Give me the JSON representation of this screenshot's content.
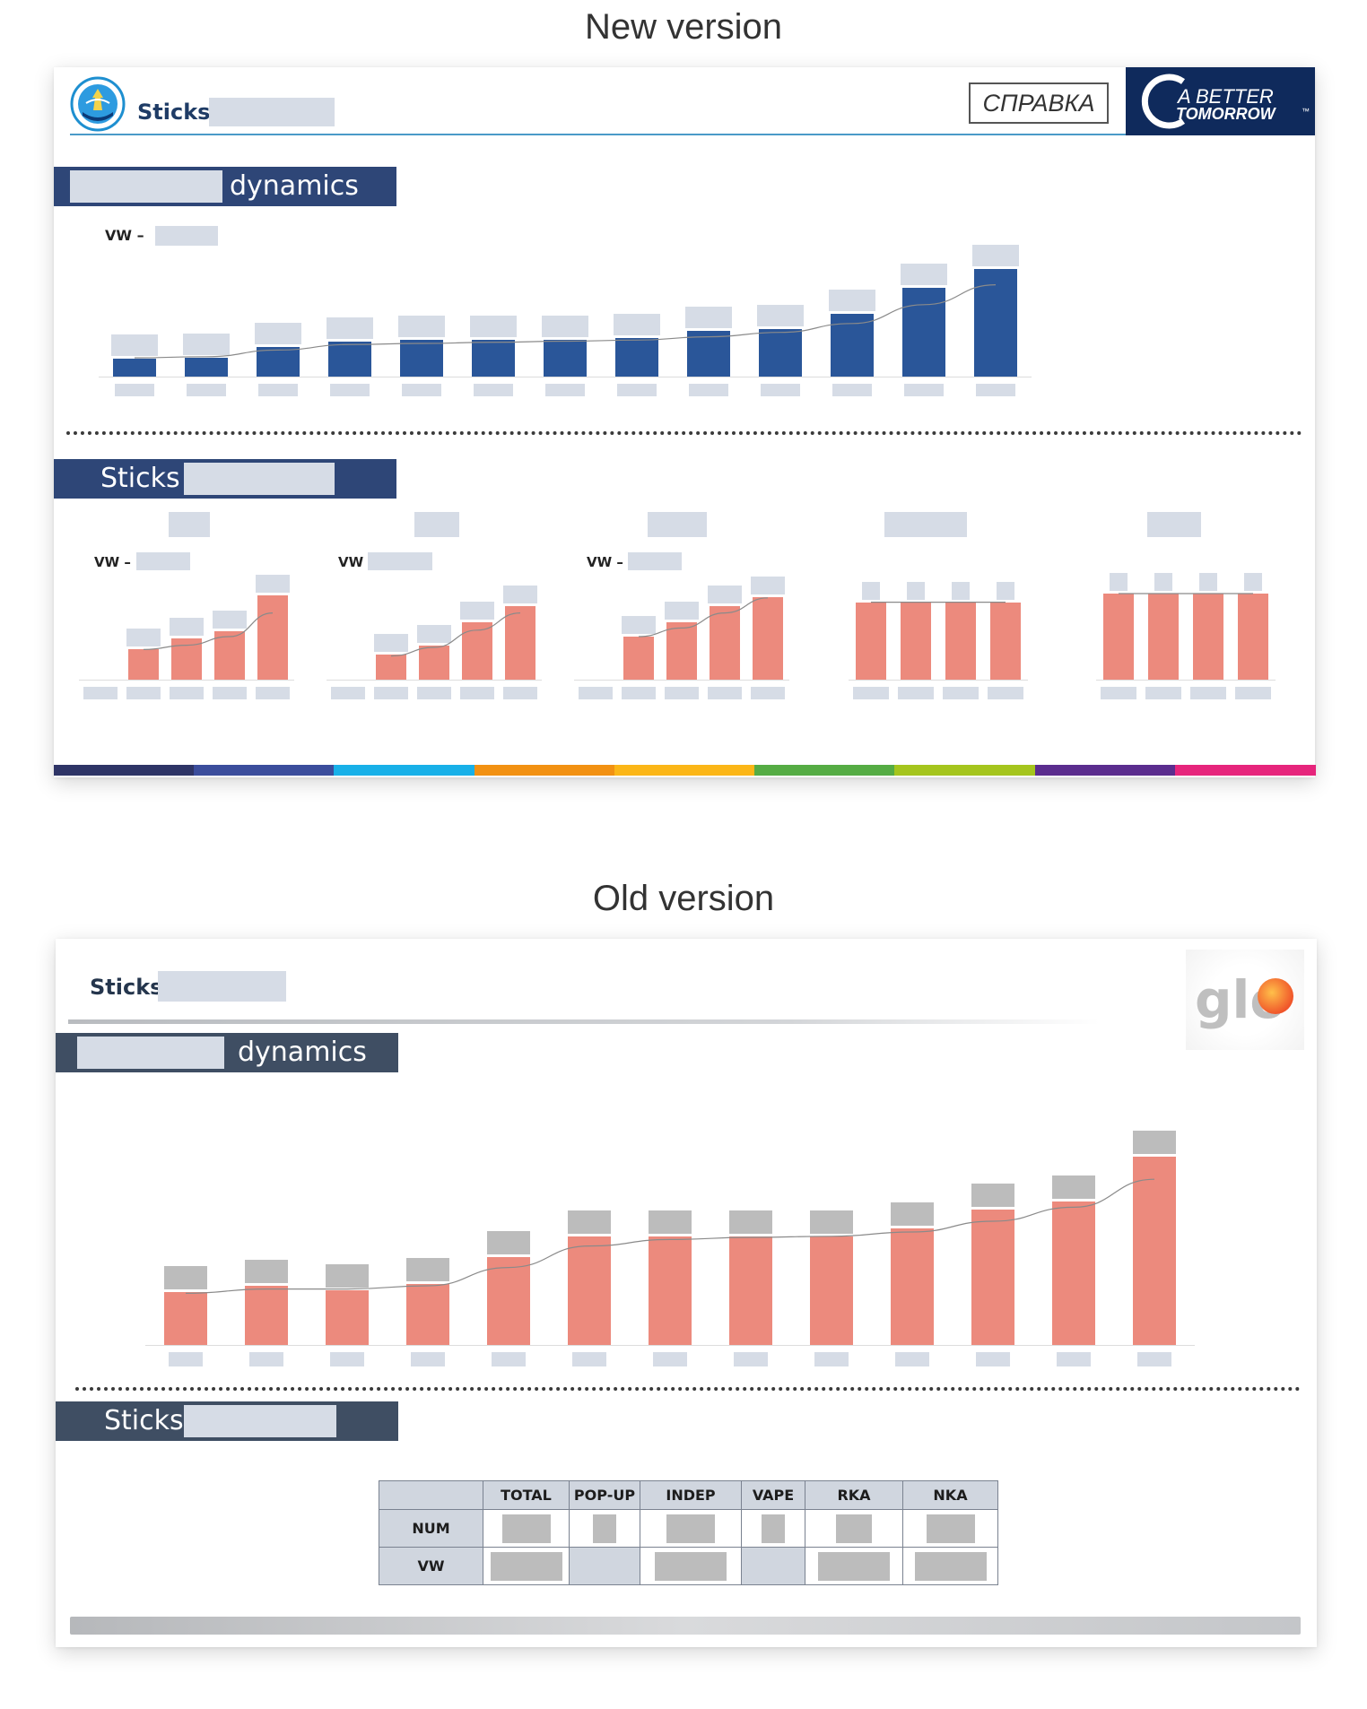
{
  "titles": {
    "new_version": "New version",
    "old_version": "Old version"
  },
  "new_slide": {
    "brand_label": "Sticks",
    "logo_icon": "company-emblem-icon",
    "spravka_button": "СПРАВКА",
    "better_tomorrow_logo": {
      "line1": "A BETTER",
      "line2": "TOMORROW",
      "tm": "™",
      "bg_color": "#0f2a5c"
    },
    "dynamics_header": {
      "suffix": "dynamics",
      "bg_color": "#2e4677"
    },
    "main_chart_vw_label": "VW –",
    "sticks_header": {
      "label": "Sticks"
    },
    "small_charts": [
      {
        "vw_label": "VW –"
      },
      {
        "vw_label": "VW"
      },
      {
        "vw_label": "VW –"
      },
      {},
      {}
    ],
    "bottom_stripe_colors": [
      "#2e3466",
      "#3b4d9c",
      "#18b0e8",
      "#f29112",
      "#fbb617",
      "#55ac44",
      "#a5c51d",
      "#5b2d8e",
      "#e6257c"
    ]
  },
  "old_slide": {
    "brand_label": "Sticks",
    "glo_logo": "glo",
    "dynamics_header": {
      "suffix": "dynamics",
      "bg_color": "#3f4e63"
    },
    "sticks_header": {
      "label": "Sticks"
    },
    "table": {
      "columns": [
        "TOTAL",
        "POP-UP",
        "INDEP",
        "VAPE",
        "RKA",
        "NKA"
      ],
      "rows": [
        "NUM",
        "VW"
      ]
    }
  },
  "chart_data": [
    {
      "type": "bar",
      "name_ref": "new-main-chart",
      "categories": [
        "",
        "",
        "",
        "",
        "",
        "",
        "",
        "",
        "",
        "",
        "",
        "",
        ""
      ],
      "values": [
        16,
        17,
        27,
        32,
        33,
        33,
        33,
        35,
        41,
        43,
        57,
        80,
        97
      ],
      "trend": [
        17,
        18,
        24,
        29,
        30,
        31,
        32,
        33,
        36,
        40,
        48,
        65,
        83
      ],
      "color": "#2a5699",
      "ylim": [
        0,
        120
      ]
    },
    {
      "type": "bar",
      "name_ref": "new-small-chart-1",
      "categories": [
        "",
        "",
        "",
        "",
        ""
      ],
      "values": [
        0,
        28,
        38,
        45,
        78
      ],
      "trend": [
        0,
        28,
        32,
        40,
        62
      ],
      "color": "#ec8a7d",
      "ylim": [
        0,
        100
      ]
    },
    {
      "type": "bar",
      "name_ref": "new-small-chart-2",
      "categories": [
        "",
        "",
        "",
        "",
        ""
      ],
      "values": [
        0,
        23,
        32,
        53,
        68
      ],
      "trend": [
        0,
        22,
        30,
        46,
        62
      ],
      "color": "#ec8a7d",
      "ylim": [
        0,
        100
      ]
    },
    {
      "type": "bar",
      "name_ref": "new-small-chart-3",
      "categories": [
        "",
        "",
        "",
        "",
        ""
      ],
      "values": [
        0,
        40,
        53,
        68,
        77
      ],
      "trend": [
        0,
        40,
        48,
        62,
        76
      ],
      "color": "#ec8a7d",
      "ylim": [
        0,
        100
      ]
    },
    {
      "type": "bar",
      "name_ref": "new-small-chart-4",
      "categories": [
        "",
        "",
        "",
        ""
      ],
      "values": [
        72,
        72,
        72,
        72
      ],
      "trend": [
        72,
        72,
        72,
        72
      ],
      "color": "#ec8a7d",
      "ylim": [
        0,
        100
      ]
    },
    {
      "type": "bar",
      "name_ref": "new-small-chart-5",
      "categories": [
        "",
        "",
        "",
        ""
      ],
      "values": [
        80,
        80,
        80,
        80
      ],
      "trend": [
        80,
        80,
        80,
        80
      ],
      "color": "#ec8a7d",
      "ylim": [
        0,
        100
      ]
    },
    {
      "type": "bar",
      "name_ref": "old-main-chart",
      "categories": [
        "",
        "",
        "",
        "",
        "",
        "",
        "",
        "",
        "",
        "",
        "",
        "",
        ""
      ],
      "values": [
        49,
        55,
        51,
        57,
        82,
        101,
        101,
        101,
        101,
        108,
        126,
        133,
        175
      ],
      "trend": [
        48,
        52,
        52,
        55,
        72,
        92,
        98,
        100,
        101,
        105,
        115,
        128,
        154
      ],
      "color": "#ec8a7d",
      "ylim": [
        0,
        200
      ]
    }
  ]
}
